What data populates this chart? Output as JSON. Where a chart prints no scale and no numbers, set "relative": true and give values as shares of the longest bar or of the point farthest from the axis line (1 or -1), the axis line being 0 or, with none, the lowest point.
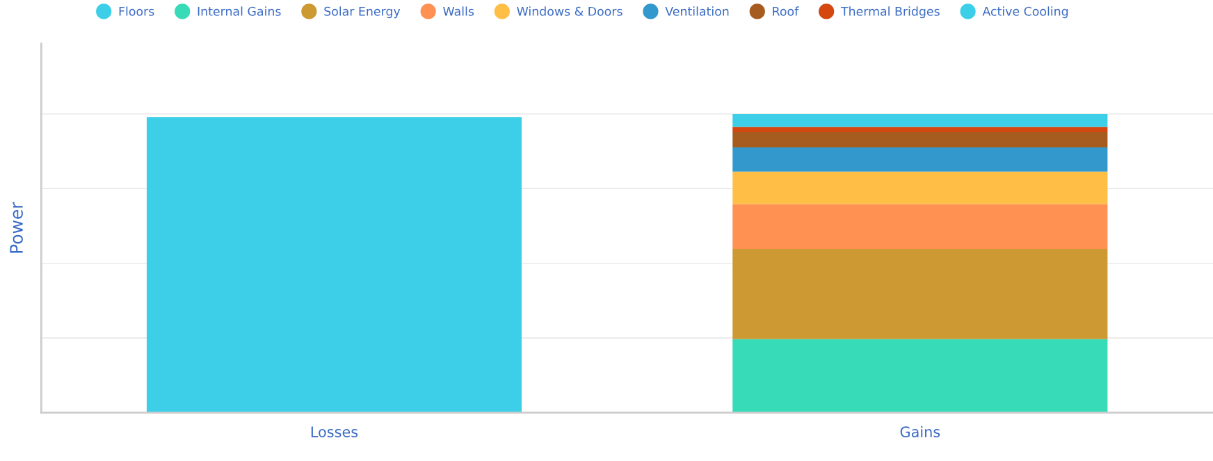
{
  "chart_data": {
    "type": "bar",
    "stacked": true,
    "relative": true,
    "ylabel": "Power",
    "categories": [
      "Losses",
      "Gains"
    ],
    "grid": "y",
    "legend": "top",
    "series": [
      {
        "name": "Floors",
        "color": "#3dcfe8",
        "values": [
          0.99,
          null
        ]
      },
      {
        "name": "Internal Gains",
        "color": "#38dbb8",
        "values": [
          null,
          0.246
        ]
      },
      {
        "name": "Solar Energy",
        "color": "#cc9933",
        "values": [
          null,
          0.302
        ]
      },
      {
        "name": "Walls",
        "color": "#ff9152",
        "values": [
          null,
          0.15
        ]
      },
      {
        "name": "Windows & Doors",
        "color": "#ffbf47",
        "values": [
          null,
          0.109
        ]
      },
      {
        "name": "Ventilation",
        "color": "#3399cc",
        "values": [
          null,
          0.081
        ]
      },
      {
        "name": "Roof",
        "color": "#a65c1f",
        "values": [
          null,
          0.051
        ]
      },
      {
        "name": "Thermal Bridges",
        "color": "#d4470f",
        "values": [
          null,
          0.018
        ]
      },
      {
        "name": "Active Cooling",
        "color": "#3dcfe8",
        "values": [
          null,
          0.043
        ]
      }
    ]
  }
}
